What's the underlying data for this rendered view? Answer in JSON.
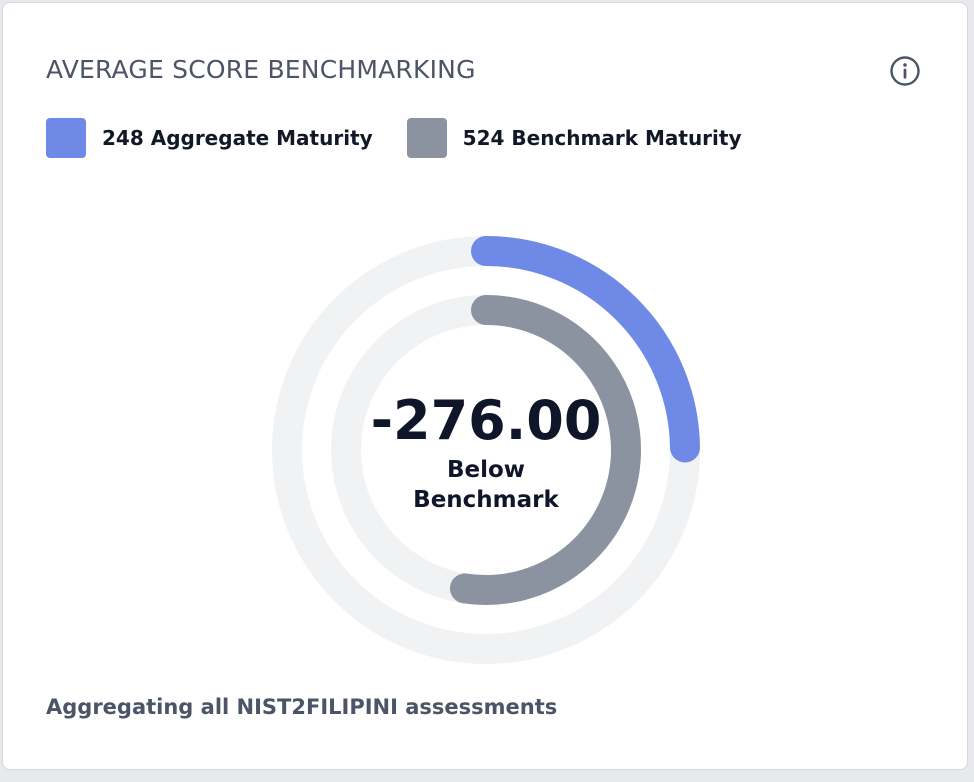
{
  "card": {
    "title": "AVERAGE SCORE BENCHMARKING",
    "info_icon": "info-circle-icon",
    "footer": "Aggregating all NIST2FILIPINI assessments"
  },
  "legend": [
    {
      "label": "248 Aggregate Maturity",
      "color": "#6f8ae6"
    },
    {
      "label": "524 Benchmark Maturity",
      "color": "#8c93a0"
    }
  ],
  "center": {
    "value": "-276.00",
    "line1": "Below",
    "line2": "Benchmark"
  },
  "chart_data": {
    "type": "radial_bar",
    "max": 1000,
    "series": [
      {
        "name": "Aggregate Maturity",
        "value": 248,
        "ring": "outer",
        "color": "#6f8ae6"
      },
      {
        "name": "Benchmark Maturity",
        "value": 524,
        "ring": "inner",
        "color": "#8c93a0"
      }
    ],
    "difference": -276.0,
    "track_color": "#f1f2f4"
  }
}
